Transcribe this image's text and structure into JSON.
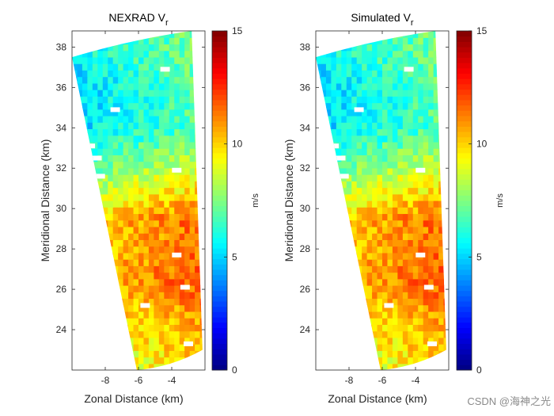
{
  "chart_data": [
    {
      "type": "heatmap",
      "title": "NEXRAD V",
      "title_sub": "r",
      "xlabel": "Zonal Distance (km)",
      "ylabel": "Meridional Distance (km)",
      "xlim": [
        -10,
        -2
      ],
      "ylim": [
        22,
        38.8
      ],
      "xticks": [
        -8,
        -6,
        -4
      ],
      "yticks": [
        24,
        26,
        28,
        30,
        32,
        34,
        36,
        38
      ],
      "colorbar": {
        "label": "m/s",
        "ticks": [
          0,
          5,
          10,
          15
        ],
        "range": [
          0,
          15
        ],
        "colormap": "jet"
      },
      "value_field": [
        {
          "y": 37.6,
          "value": 6.5
        },
        {
          "y": 36,
          "value": 6.0
        },
        {
          "y": 34,
          "value": 6.0
        },
        {
          "y": 32,
          "value": 7.8
        },
        {
          "y": 30.5,
          "value": 9.5
        },
        {
          "y": 29.5,
          "value": 10.8
        },
        {
          "y": 28,
          "value": 10.6
        },
        {
          "y": 26.5,
          "value": 11.0
        },
        {
          "y": 24.5,
          "value": 10.0
        },
        {
          "y": 22.5,
          "value": 9.2
        }
      ],
      "east_increase_per_km": 0.25,
      "missing_cells": [
        {
          "x": -4.4,
          "y": 36.9
        },
        {
          "x": -7.4,
          "y": 34.9
        },
        {
          "x": -8.9,
          "y": 33.1
        },
        {
          "x": -8.5,
          "y": 32.5
        },
        {
          "x": -8.3,
          "y": 31.6
        },
        {
          "x": -3.7,
          "y": 31.9
        },
        {
          "x": -3.7,
          "y": 27.7
        },
        {
          "x": -3.2,
          "y": 26.1
        },
        {
          "x": -5.6,
          "y": 25.2
        },
        {
          "x": -3.0,
          "y": 23.3
        }
      ]
    },
    {
      "type": "heatmap",
      "title": "Simulated V",
      "title_sub": "r",
      "xlabel": "Zonal Distance (km)",
      "ylabel": "Meridional Distance (km)",
      "xlim": [
        -10,
        -2
      ],
      "ylim": [
        22,
        38.8
      ],
      "xticks": [
        -8,
        -6,
        -4
      ],
      "yticks": [
        24,
        26,
        28,
        30,
        32,
        34,
        36,
        38
      ],
      "colorbar": {
        "label": "m/s",
        "ticks": [
          0,
          5,
          10,
          15
        ],
        "range": [
          0,
          15
        ],
        "colormap": "jet"
      },
      "value_field": [
        {
          "y": 37.6,
          "value": 6.5
        },
        {
          "y": 36,
          "value": 6.0
        },
        {
          "y": 34,
          "value": 6.0
        },
        {
          "y": 32,
          "value": 7.8
        },
        {
          "y": 30.5,
          "value": 9.5
        },
        {
          "y": 29.5,
          "value": 10.8
        },
        {
          "y": 28,
          "value": 10.6
        },
        {
          "y": 26.5,
          "value": 11.0
        },
        {
          "y": 24.5,
          "value": 10.0
        },
        {
          "y": 22.5,
          "value": 9.2
        }
      ],
      "east_increase_per_km": 0.25,
      "missing_cells": [
        {
          "x": -4.4,
          "y": 36.9
        },
        {
          "x": -7.4,
          "y": 34.9
        },
        {
          "x": -8.9,
          "y": 33.1
        },
        {
          "x": -8.5,
          "y": 32.5
        },
        {
          "x": -8.3,
          "y": 31.6
        },
        {
          "x": -3.7,
          "y": 31.9
        },
        {
          "x": -3.7,
          "y": 27.7
        },
        {
          "x": -3.2,
          "y": 26.1
        },
        {
          "x": -5.6,
          "y": 25.2
        },
        {
          "x": -3.0,
          "y": 23.3
        }
      ]
    }
  ],
  "watermark": "CSDN @海神之光"
}
